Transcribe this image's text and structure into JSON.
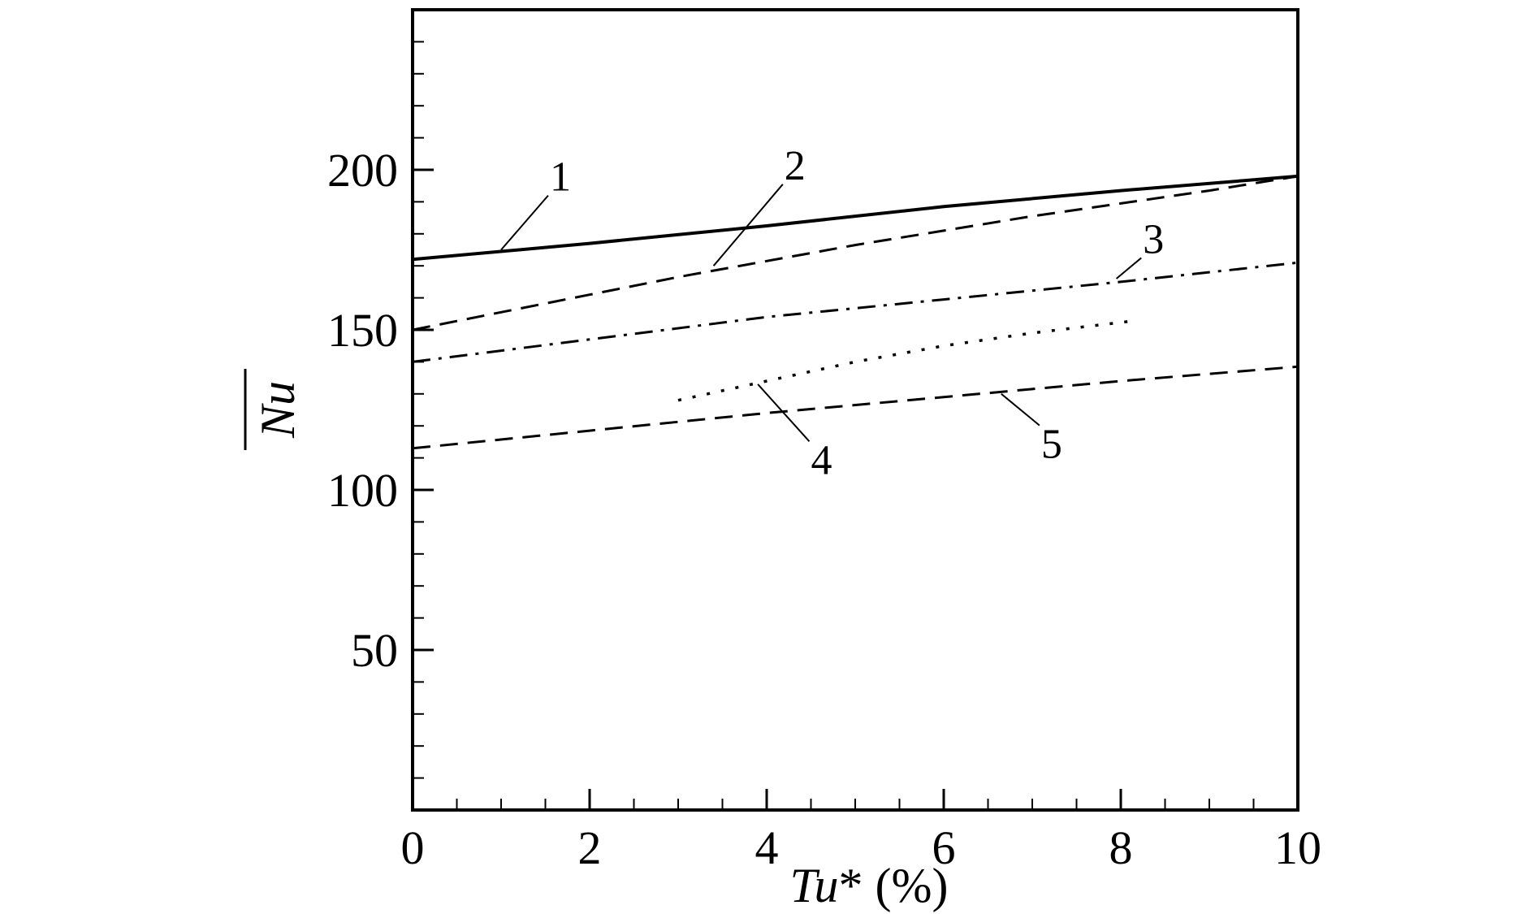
{
  "chart_data": {
    "type": "line",
    "xlabel": {
      "main": "Tu",
      "suffix": "* (%)"
    },
    "ylabel": "Nu",
    "ylabel_overbar": true,
    "xlim": [
      0,
      10
    ],
    "ylim": [
      0,
      250
    ],
    "xticks": [
      0,
      2,
      4,
      6,
      8,
      10
    ],
    "xtick_labels": [
      "0",
      "2",
      "4",
      "6",
      "8",
      "10"
    ],
    "yticks": [
      50,
      100,
      150,
      200
    ],
    "ytick_labels": [
      "50",
      "100",
      "150",
      "200"
    ],
    "x_minor_step": 0.5,
    "y_minor_step": 10,
    "grid": false,
    "legend": "none",
    "series": [
      {
        "label": "1",
        "style": "solid",
        "x": [
          0,
          2,
          4,
          6,
          8,
          10
        ],
        "y": [
          172,
          177,
          182.5,
          188.5,
          193.5,
          198
        ],
        "label_anchor": {
          "x": 1.55,
          "y": 193.5
        },
        "label_leader_to": {
          "x": 1.0,
          "y": 175
        }
      },
      {
        "label": "2",
        "style": "dashed",
        "x": [
          0,
          1,
          2,
          3,
          4,
          5,
          6,
          7,
          8,
          9,
          10
        ],
        "y": [
          150,
          155.5,
          161,
          166.5,
          171.5,
          176.5,
          181,
          185.5,
          189.5,
          193.5,
          198
        ],
        "label_anchor": {
          "x": 4.2,
          "y": 197
        },
        "label_leader_to": {
          "x": 3.4,
          "y": 170
        }
      },
      {
        "label": "3",
        "style": "dashdot",
        "x": [
          0,
          2,
          4,
          6,
          8,
          10
        ],
        "y": [
          140,
          147,
          154,
          159.5,
          165,
          171
        ],
        "label_anchor": {
          "x": 8.25,
          "y": 174
        },
        "label_leader_to": {
          "x": 7.95,
          "y": 166
        }
      },
      {
        "label": "4",
        "style": "dotted",
        "x": [
          3,
          4,
          5,
          6,
          7,
          8.2
        ],
        "y": [
          128,
          134,
          140,
          145,
          149,
          153
        ],
        "label_anchor": {
          "x": 4.5,
          "y": 105
        },
        "label_leader_to": {
          "x": 3.9,
          "y": 133
        }
      },
      {
        "label": "5",
        "style": "dashed",
        "x": [
          0,
          2,
          4,
          6,
          8,
          10
        ],
        "y": [
          113,
          118.5,
          124,
          129,
          134,
          138.5
        ],
        "label_anchor": {
          "x": 7.1,
          "y": 110
        },
        "label_leader_to": {
          "x": 6.65,
          "y": 130
        }
      }
    ]
  }
}
